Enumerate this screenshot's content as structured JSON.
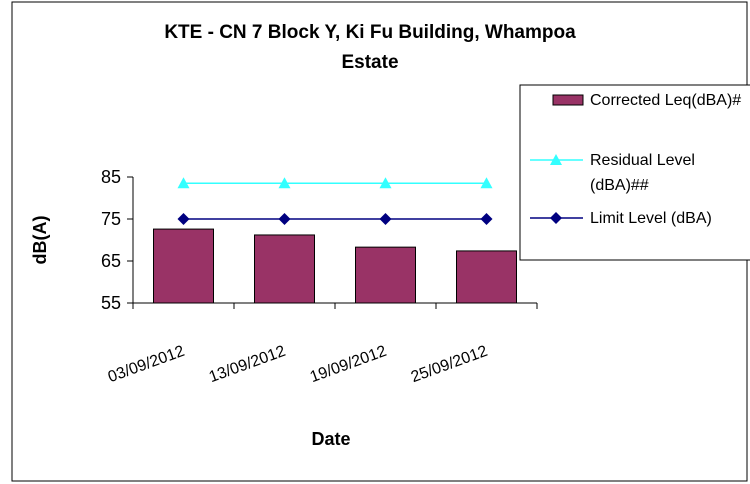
{
  "chart_data": {
    "type": "bar",
    "title": "KTE - CN 7 Block Y, Ki Fu Building, Whampoa Estate",
    "x_label": "Date",
    "y_label": "dB(A)",
    "categories": [
      "03/09/2012",
      "13/09/2012",
      "19/09/2012",
      "25/09/2012"
    ],
    "series": [
      {
        "name": "Corrected Leq(dBA)#",
        "type": "bar",
        "color": "#993366",
        "values": [
          72.6,
          71.2,
          68.3,
          67.4
        ]
      },
      {
        "name": "Residual Level (dBA)##",
        "type": "line",
        "marker": "triangle",
        "color": "#33ffff",
        "values": [
          83.5,
          83.5,
          83.5,
          83.5
        ]
      },
      {
        "name": "Limit Level (dBA)",
        "type": "line",
        "marker": "diamond",
        "color": "#000080",
        "values": [
          75,
          75,
          75,
          75
        ]
      }
    ],
    "ylim": [
      55,
      85
    ],
    "yticks": [
      55,
      65,
      75,
      85
    ],
    "grid": false,
    "legend": "right"
  }
}
